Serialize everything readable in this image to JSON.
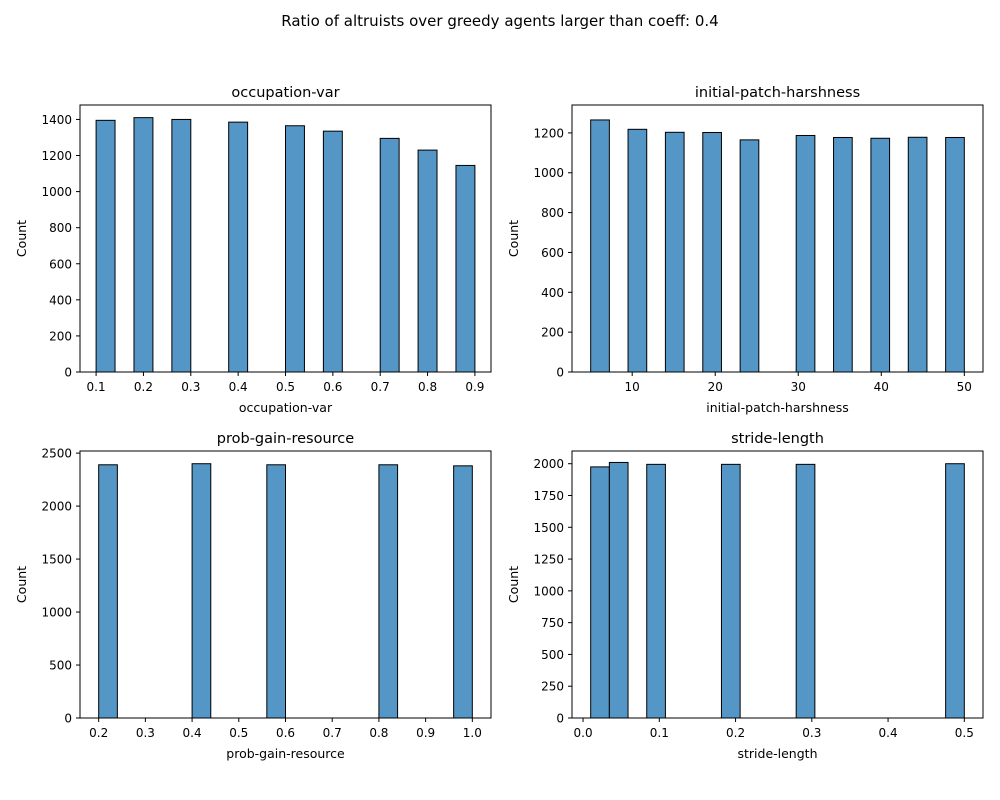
{
  "figure": {
    "suptitle": "Ratio of altruists over greedy agents larger than coeff: 0.4",
    "bar_color": "#5497C6",
    "edge_color": "#000000"
  },
  "chart_data": [
    {
      "type": "bar",
      "title": "occupation-var",
      "xlabel": "occupation-var",
      "ylabel": "Count",
      "xlim": [
        0.066,
        0.934
      ],
      "ylim": [
        0,
        1480
      ],
      "xticks": [
        0.1,
        0.2,
        0.3,
        0.4,
        0.5,
        0.6,
        0.7,
        0.8,
        0.9
      ],
      "xtick_labels": [
        "0.1",
        "0.2",
        "0.3",
        "0.4",
        "0.5",
        "0.6",
        "0.7",
        "0.8",
        "0.9"
      ],
      "yticks": [
        0,
        200,
        400,
        600,
        800,
        1000,
        1200,
        1400
      ],
      "ytick_labels": [
        "0",
        "200",
        "400",
        "600",
        "800",
        "1000",
        "1200",
        "1400"
      ],
      "bins": [
        [
          0.1,
          0.14
        ],
        [
          0.18,
          0.22
        ],
        [
          0.26,
          0.3
        ],
        [
          0.38,
          0.42
        ],
        [
          0.5,
          0.54
        ],
        [
          0.58,
          0.62
        ],
        [
          0.7,
          0.74
        ],
        [
          0.78,
          0.82
        ],
        [
          0.86,
          0.9
        ]
      ],
      "values": [
        1395,
        1410,
        1400,
        1385,
        1365,
        1335,
        1295,
        1230,
        1145
      ]
    },
    {
      "type": "bar",
      "title": "initial-patch-harshness",
      "xlabel": "initial-patch-harshness",
      "ylabel": "Count",
      "xlim": [
        2.75,
        52.25
      ],
      "ylim": [
        0,
        1340
      ],
      "xticks": [
        10,
        20,
        30,
        40,
        50
      ],
      "xtick_labels": [
        "10",
        "20",
        "30",
        "40",
        "50"
      ],
      "yticks": [
        0,
        200,
        400,
        600,
        800,
        1000,
        1200
      ],
      "ytick_labels": [
        "0",
        "200",
        "400",
        "600",
        "800",
        "1000",
        "1200"
      ],
      "bins": [
        [
          5,
          7.25
        ],
        [
          9.5,
          11.75
        ],
        [
          14,
          16.25
        ],
        [
          18.5,
          20.75
        ],
        [
          23,
          25.25
        ],
        [
          29.75,
          32
        ],
        [
          34.25,
          36.5
        ],
        [
          38.75,
          41
        ],
        [
          43.25,
          45.5
        ],
        [
          47.75,
          50
        ]
      ],
      "values": [
        1265,
        1218,
        1203,
        1202,
        1165,
        1187,
        1177,
        1173,
        1178,
        1177
      ]
    },
    {
      "type": "bar",
      "title": "prob-gain-resource",
      "xlabel": "prob-gain-resource",
      "ylabel": "Count",
      "xlim": [
        0.16,
        1.04
      ],
      "ylim": [
        0,
        2520
      ],
      "xticks": [
        0.2,
        0.3,
        0.4,
        0.5,
        0.6,
        0.7,
        0.8,
        0.9,
        1.0
      ],
      "xtick_labels": [
        "0.2",
        "0.3",
        "0.4",
        "0.5",
        "0.6",
        "0.7",
        "0.8",
        "0.9",
        "1.0"
      ],
      "yticks": [
        0,
        500,
        1000,
        1500,
        2000,
        2500
      ],
      "ytick_labels": [
        "0",
        "500",
        "1000",
        "1500",
        "2000",
        "2500"
      ],
      "bins": [
        [
          0.2,
          0.24
        ],
        [
          0.4,
          0.44
        ],
        [
          0.56,
          0.6
        ],
        [
          0.8,
          0.84
        ],
        [
          0.96,
          1.0
        ]
      ],
      "values": [
        2390,
        2400,
        2390,
        2390,
        2380
      ]
    },
    {
      "type": "bar",
      "title": "stride-length",
      "xlabel": "stride-length",
      "ylabel": "Count",
      "xlim": [
        -0.0145,
        0.5245
      ],
      "ylim": [
        0,
        2100
      ],
      "xticks": [
        0.0,
        0.1,
        0.2,
        0.3,
        0.4,
        0.5
      ],
      "xtick_labels": [
        "0.0",
        "0.1",
        "0.2",
        "0.3",
        "0.4",
        "0.5"
      ],
      "yticks": [
        0,
        250,
        500,
        750,
        1000,
        1250,
        1500,
        1750,
        2000
      ],
      "ytick_labels": [
        "0",
        "250",
        "500",
        "750",
        "1000",
        "1250",
        "1500",
        "1750",
        "2000"
      ],
      "bins": [
        [
          0.01,
          0.0345
        ],
        [
          0.0345,
          0.059
        ],
        [
          0.0835,
          0.108
        ],
        [
          0.1815,
          0.206
        ],
        [
          0.2795,
          0.304
        ],
        [
          0.4755,
          0.5
        ]
      ],
      "values": [
        1975,
        2010,
        1995,
        1995,
        1995,
        2000
      ]
    }
  ]
}
